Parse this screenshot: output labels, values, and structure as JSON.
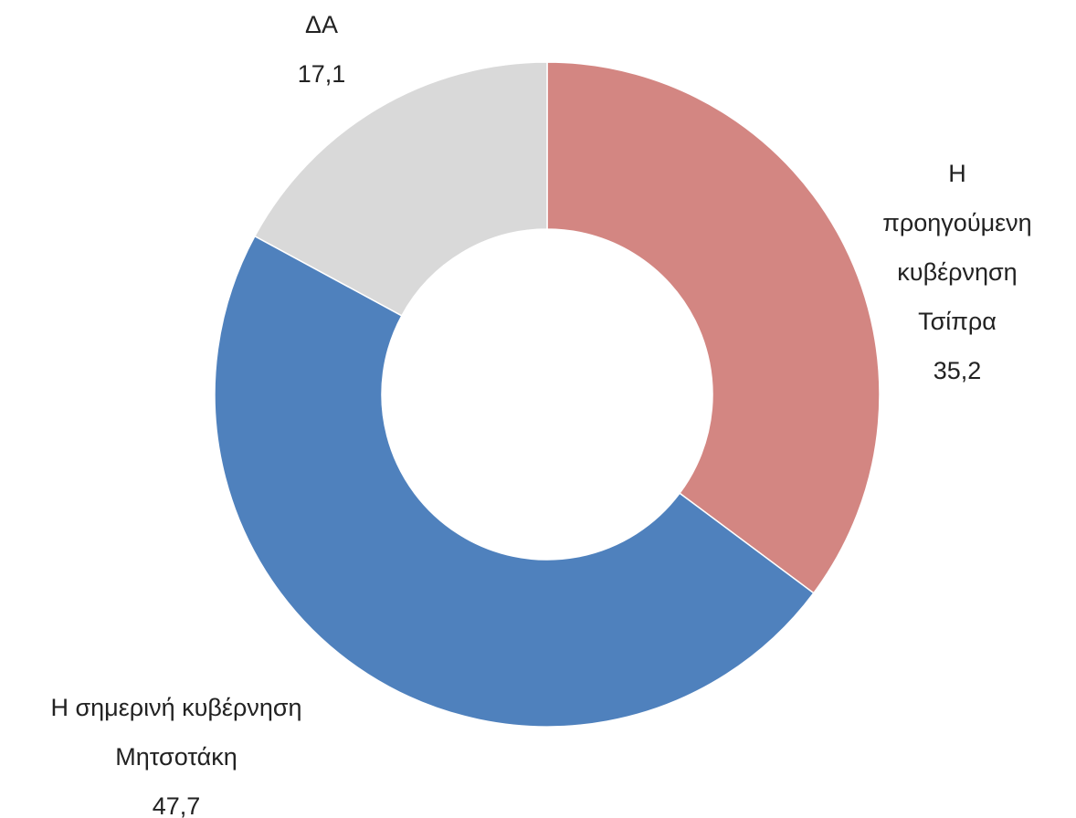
{
  "chart_data": {
    "type": "donut",
    "categories": [
      "Η προηγούμενη\nκυβέρνηση\nΤσίπρα",
      "Η σημερινή κυβέρνηση\nΜητσοτάκη",
      "ΔΑ"
    ],
    "values": [
      35.2,
      47.7,
      17.1
    ],
    "value_labels": [
      "35,2",
      "47,7",
      "17,1"
    ],
    "colors": [
      "#d38682",
      "#4f81bd",
      "#d9d9d9"
    ]
  }
}
